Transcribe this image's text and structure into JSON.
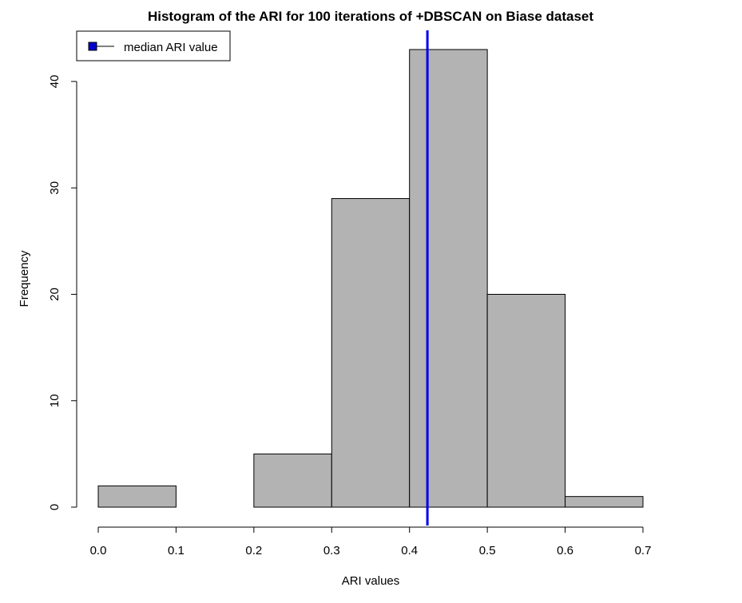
{
  "chart_data": {
    "type": "bar",
    "title": "Histogram of the ARI for 100 iterations of +DBSCAN on Biase dataset",
    "xlabel": "ARI values",
    "ylabel": "Frequency",
    "bins": [
      {
        "from": 0.0,
        "to": 0.1,
        "count": 2
      },
      {
        "from": 0.1,
        "to": 0.2,
        "count": 0
      },
      {
        "from": 0.2,
        "to": 0.3,
        "count": 5
      },
      {
        "from": 0.3,
        "to": 0.4,
        "count": 29
      },
      {
        "from": 0.4,
        "to": 0.5,
        "count": 43
      },
      {
        "from": 0.5,
        "to": 0.6,
        "count": 20
      },
      {
        "from": 0.6,
        "to": 0.7,
        "count": 1
      }
    ],
    "median": 0.423,
    "xlim": [
      0.0,
      0.7
    ],
    "ylim": [
      0,
      45
    ],
    "x_ticks": [
      "0.0",
      "0.1",
      "0.2",
      "0.3",
      "0.4",
      "0.5",
      "0.6",
      "0.7"
    ],
    "y_ticks": [
      "0",
      "10",
      "20",
      "30",
      "40"
    ],
    "legend": {
      "label": "median ARI value",
      "position": "top-left"
    },
    "colors": {
      "bar_fill": "#b3b3b3",
      "bar_stroke": "#000000",
      "median_line": "#0000ee",
      "legend_marker": "#0000cd"
    },
    "grid": false
  }
}
